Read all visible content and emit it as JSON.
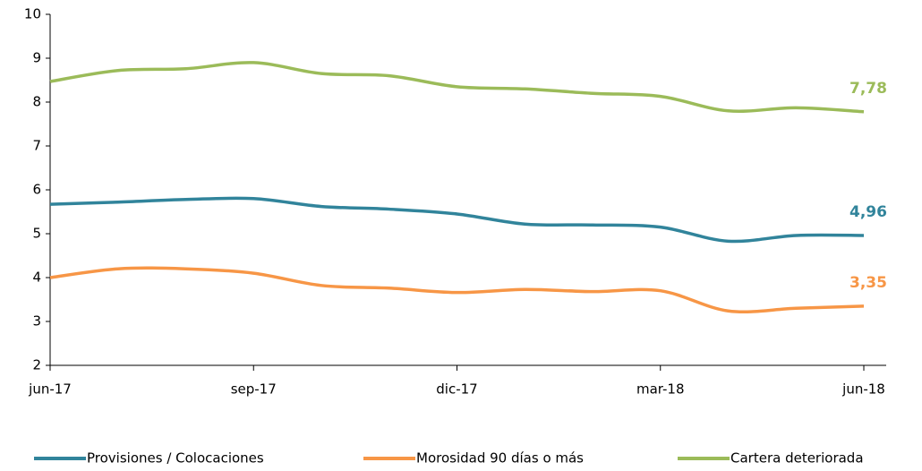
{
  "chart_data": {
    "type": "line",
    "categories": [
      "jun-17",
      null,
      null,
      "sep-17",
      null,
      null,
      "dic-17",
      null,
      null,
      "mar-18",
      null,
      null,
      "jun-18"
    ],
    "series": [
      {
        "name": "Provisiones / Colocaciones",
        "color": "#31849b",
        "values": [
          5.67,
          5.72,
          5.78,
          5.8,
          5.62,
          5.56,
          5.45,
          5.22,
          5.2,
          5.15,
          4.83,
          4.96,
          4.96
        ],
        "value_labels": [
          null,
          null,
          null,
          null,
          null,
          null,
          null,
          null,
          null,
          null,
          null,
          null,
          "4,96"
        ]
      },
      {
        "name": "Morosidad 90 días o más",
        "color": "#f79646",
        "values": [
          4.0,
          4.2,
          4.2,
          4.1,
          3.82,
          3.76,
          3.66,
          3.73,
          3.68,
          3.7,
          3.24,
          3.3,
          3.35
        ],
        "value_labels": [
          null,
          null,
          null,
          null,
          null,
          null,
          null,
          null,
          null,
          null,
          null,
          null,
          "3,35"
        ]
      },
      {
        "name": "Cartera deteriorada",
        "color": "#9bbb59",
        "values": [
          8.47,
          8.72,
          8.76,
          8.9,
          8.65,
          8.6,
          8.35,
          8.3,
          8.2,
          8.13,
          7.8,
          7.87,
          7.78
        ],
        "value_labels": [
          null,
          null,
          null,
          null,
          null,
          null,
          null,
          null,
          null,
          null,
          null,
          null,
          "7,78"
        ]
      }
    ],
    "ylim": [
      2,
      10
    ],
    "yticks": [
      2,
      3,
      4,
      5,
      6,
      7,
      8,
      9,
      10
    ],
    "legend": "bottom"
  }
}
